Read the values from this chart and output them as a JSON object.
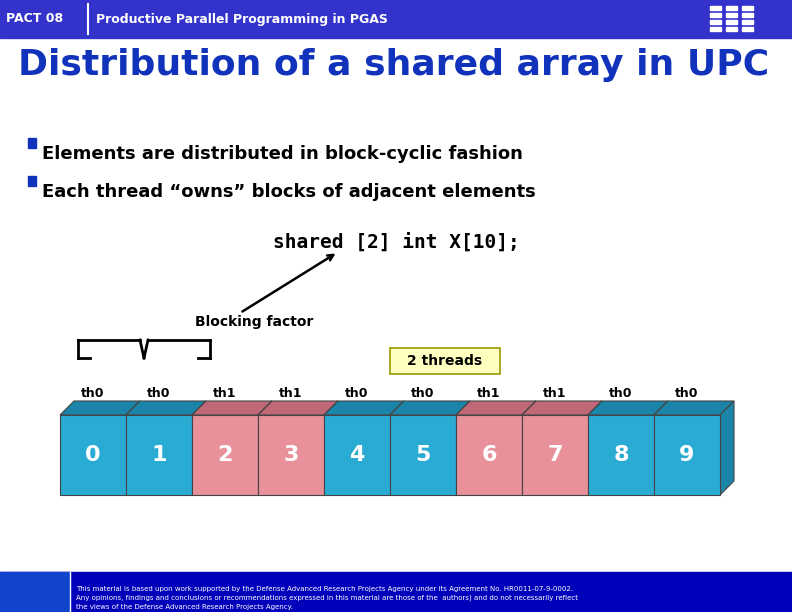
{
  "title": "Distribution of a shared array in UPC",
  "header_text": "PACT 08",
  "header_subtitle": "Productive Parallel Programming in PGAS",
  "bullet1": "Elements are distributed in block-cyclic fashion",
  "bullet2": "Each thread “owns” blocks of adjacent elements",
  "code_text": "shared [2] int X[10];",
  "blocking_label": "Blocking factor",
  "threads_label": "2 threads",
  "thread_labels": [
    "th0",
    "th0",
    "th1",
    "th1",
    "th0",
    "th0",
    "th1",
    "th1",
    "th0",
    "th0"
  ],
  "cell_values": [
    "0",
    "1",
    "2",
    "3",
    "4",
    "5",
    "6",
    "7",
    "8",
    "9"
  ],
  "cell_colors": [
    "#29ABD4",
    "#29ABD4",
    "#E8919A",
    "#E8919A",
    "#29ABD4",
    "#29ABD4",
    "#E8919A",
    "#E8919A",
    "#29ABD4",
    "#29ABD4"
  ],
  "cell_dark_colors": [
    "#1A85A8",
    "#1A85A8",
    "#C06878",
    "#C06878",
    "#1A85A8",
    "#1A85A8",
    "#C06878",
    "#C06878",
    "#1A85A8",
    "#1A85A8"
  ],
  "header_bg": "#3333CC",
  "slide_bg": "#EEEEEE",
  "title_color": "#1133BB",
  "footer_bg": "#0000BB",
  "footer_text": "This material is based upon work supported by the Defense Advanced Research Projects Agency under its Agreement No. HR0011-07-9-0002.\nAny opinions, findings and conclusions or recommendations expressed in this material are those of the  authors) and do not necessarily reflect\nthe views of the Defense Advanced Research Projects Agency."
}
